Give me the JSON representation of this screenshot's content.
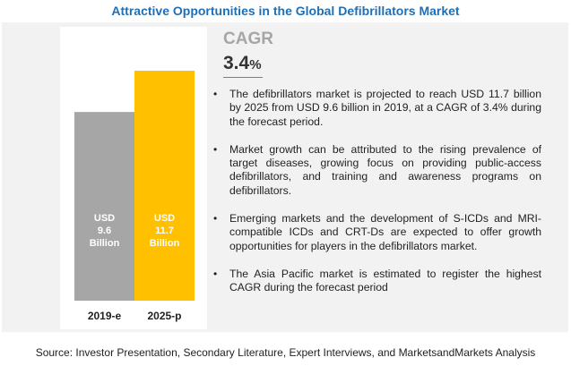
{
  "title": "Attractive Opportunities in the Global Defibrillators Market",
  "cagr": {
    "label": "CAGR",
    "value": "3.4",
    "unit": "%"
  },
  "bullets": [
    "The defibrillators market is projected to reach USD 11.7 billion by 2025 from USD 9.6 billion in 2019, at a CAGR of 3.4% during the forecast period.",
    "Market growth can be attributed to the rising prevalence of target diseases, growing focus on providing public-access defibrillators, and training and awareness programs on defibrillators.",
    "Emerging markets and the development of S-ICDs and MRI-compatible ICDs and CRT-Ds are expected to offer growth opportunities for players in the defibrillators market.",
    "The Asia Pacific market is estimated to register the highest CAGR during the forecast period"
  ],
  "source": "Source: Investor Presentation, Secondary Literature, Expert Interviews, and MarketsandMarkets Analysis",
  "chart_data": {
    "type": "bar",
    "categories": [
      "2019-e",
      "2025-p"
    ],
    "values": [
      9.6,
      11.7
    ],
    "data_labels": [
      [
        "USD",
        "9.6",
        "Billion"
      ],
      [
        "USD",
        "11.7",
        "Billion"
      ]
    ],
    "colors": [
      "#a6a6a6",
      "#ffc000"
    ],
    "ylim": [
      0,
      11.7
    ]
  }
}
